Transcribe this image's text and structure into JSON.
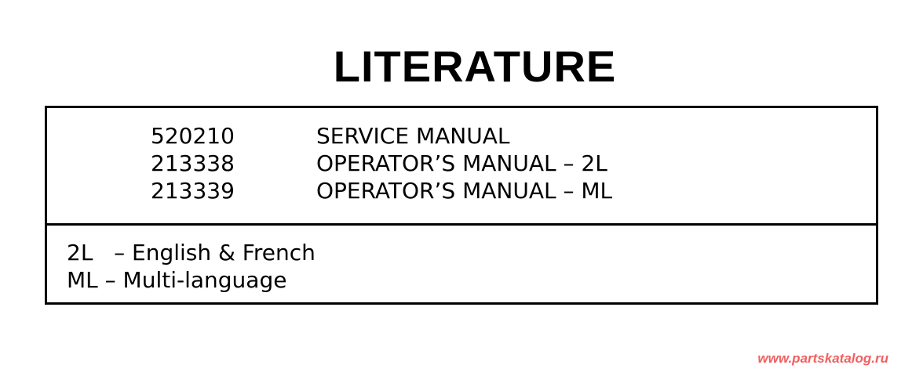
{
  "title": "LITERATURE",
  "items": [
    {
      "part": "520210",
      "description": "SERVICE MANUAL"
    },
    {
      "part": "213338",
      "description": "OPERATOR’S MANUAL – 2L"
    },
    {
      "part": "213339",
      "description": "OPERATOR’S MANUAL – ML"
    }
  ],
  "notes": [
    "2L   – English & French",
    "ML – Multi-language"
  ],
  "watermark": "www.partskatalog.ru"
}
